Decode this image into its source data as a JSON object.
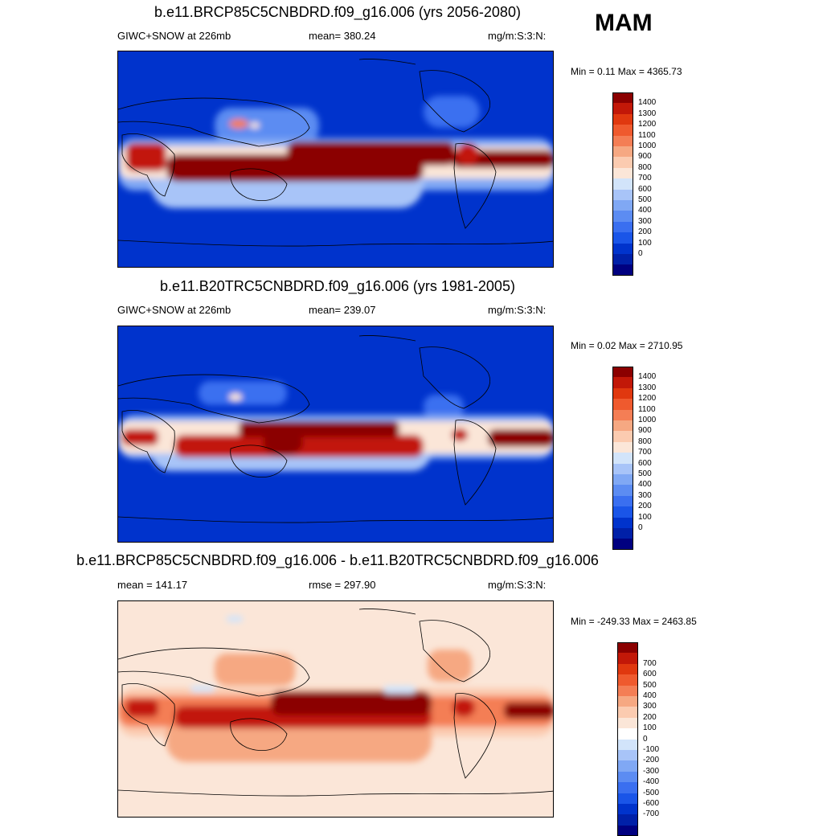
{
  "season": "MAM",
  "panels": [
    {
      "title": "b.e11.BRCP85C5CNBDRD.f09_g16.006 (yrs 2056-2080)",
      "left_label": "GIWC+SNOW at 226mb",
      "center_label": "mean= 380.24",
      "right_label": "mg/m:S:3:N:",
      "minmax": "Min =   0.11 Max = 4365.73",
      "colorbar": {
        "colors": [
          "#000080",
          "#0020a8",
          "#0033cc",
          "#1a55e8",
          "#3a6ff0",
          "#5c8cf2",
          "#80a8f4",
          "#a8c4f8",
          "#d2e4fa",
          "#fbe6d8",
          "#fbcbb0",
          "#f6a882",
          "#f47e55",
          "#ef5a2e",
          "#e0380f",
          "#c21808",
          "#8b0000"
        ],
        "labels": [
          "0",
          "100",
          "200",
          "300",
          "400",
          "500",
          "600",
          "700",
          "800",
          "900",
          "1000",
          "1100",
          "1200",
          "1300",
          "1400"
        ]
      }
    },
    {
      "title": "b.e11.B20TRC5CNBDRD.f09_g16.006 (yrs 1981-2005)",
      "left_label": "GIWC+SNOW at 226mb",
      "center_label": "mean= 239.07",
      "right_label": "mg/m:S:3:N:",
      "minmax": "Min =   0.02 Max = 2710.95",
      "colorbar": {
        "colors": [
          "#000080",
          "#0020a8",
          "#0033cc",
          "#1a55e8",
          "#3a6ff0",
          "#5c8cf2",
          "#80a8f4",
          "#a8c4f8",
          "#d2e4fa",
          "#fbe6d8",
          "#fbcbb0",
          "#f6a882",
          "#f47e55",
          "#ef5a2e",
          "#e0380f",
          "#c21808",
          "#8b0000"
        ],
        "labels": [
          "0",
          "100",
          "200",
          "300",
          "400",
          "500",
          "600",
          "700",
          "800",
          "900",
          "1000",
          "1100",
          "1200",
          "1300",
          "1400"
        ]
      }
    },
    {
      "title": "b.e11.BRCP85C5CNBDRD.f09_g16.006 - b.e11.B20TRC5CNBDRD.f09_g16.006",
      "left_label": "mean = 141.17",
      "center_label": "rmse = 297.90",
      "right_label": "mg/m:S:3:N:",
      "minmax": "Min = -249.33 Max = 2463.85",
      "colorbar": {
        "colors": [
          "#000080",
          "#0020a8",
          "#0033cc",
          "#1a55e8",
          "#3a6ff0",
          "#5c8cf2",
          "#80a8f4",
          "#a8c4f8",
          "#d2e4fa",
          "#ffffff",
          "#fbe6d8",
          "#fbcbb0",
          "#f6a882",
          "#f47e55",
          "#ef5a2e",
          "#e0380f",
          "#c21808",
          "#8b0000"
        ],
        "labels": [
          "-700",
          "-600",
          "-500",
          "-400",
          "-300",
          "-200",
          "-100",
          "0",
          "100",
          "200",
          "300",
          "400",
          "500",
          "600",
          "700"
        ]
      }
    }
  ]
}
